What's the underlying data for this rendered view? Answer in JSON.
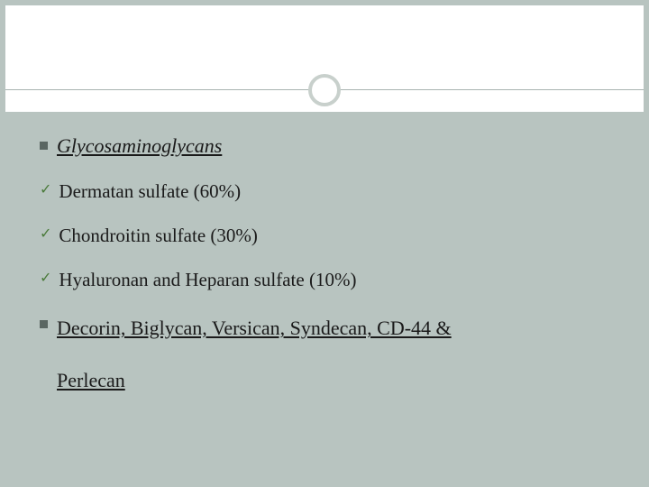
{
  "slide": {
    "background_color": "#b8c4c0",
    "header_bg": "#ffffff",
    "line_color": "#a8b4b0",
    "circle_border": "#c8d0cc",
    "text_color": "#1a1a1a",
    "square_bullet_color": "#5a6662",
    "check_bullet_color": "#4a7a3a",
    "heading_fontsize": 22,
    "item_fontsize": 21,
    "items": [
      {
        "bullet": "square",
        "style": "heading",
        "text": "Glycosaminoglycans"
      },
      {
        "bullet": "check",
        "style": "item",
        "text": "Dermatan sulfate (60%)"
      },
      {
        "bullet": "check",
        "style": "item",
        "text": "Chondroitin sulfate (30%)"
      },
      {
        "bullet": "check",
        "style": "item",
        "text": "Hyaluronan and Heparan sulfate (10%)"
      },
      {
        "bullet": "square",
        "style": "underline",
        "text": "Decorin, Biglycan, Versican, Syndecan, CD-44 &"
      },
      {
        "bullet": "none",
        "style": "underline",
        "text": "Perlecan"
      }
    ]
  }
}
